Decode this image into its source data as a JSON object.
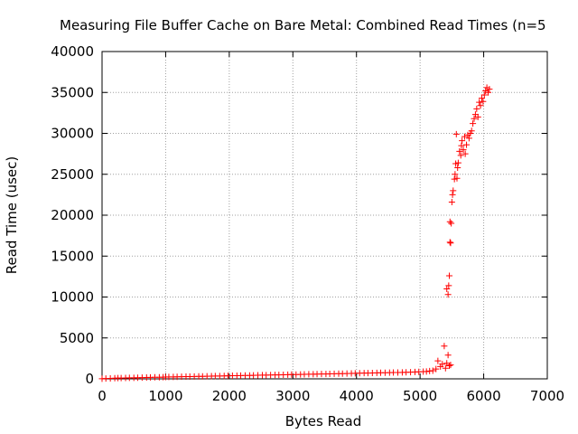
{
  "chart_data": {
    "type": "scatter",
    "title": "Measuring File Buffer Cache on Bare Metal: Combined Read Times (n=5",
    "xlabel": "Bytes Read",
    "ylabel": "Read Time (usec)",
    "xlim": [
      0,
      7000
    ],
    "ylim": [
      0,
      40000
    ],
    "xticks": [
      0,
      1000,
      2000,
      3000,
      4000,
      5000,
      6000,
      7000
    ],
    "yticks": [
      0,
      5000,
      10000,
      15000,
      20000,
      25000,
      30000,
      35000,
      40000
    ],
    "grid": true,
    "legend": "none",
    "marker": "+",
    "color": "#ff0000",
    "series": [
      {
        "points": [
          [
            0,
            20
          ],
          [
            60,
            40
          ],
          [
            130,
            60
          ],
          [
            200,
            80
          ],
          [
            250,
            90
          ],
          [
            300,
            100
          ],
          [
            370,
            110
          ],
          [
            430,
            120
          ],
          [
            500,
            130
          ],
          [
            560,
            140
          ],
          [
            630,
            150
          ],
          [
            700,
            160
          ],
          [
            760,
            180
          ],
          [
            830,
            190
          ],
          [
            900,
            200
          ],
          [
            960,
            210
          ],
          [
            1000,
            220
          ],
          [
            1050,
            230
          ],
          [
            1120,
            240
          ],
          [
            1180,
            250
          ],
          [
            1250,
            260
          ],
          [
            1320,
            270
          ],
          [
            1380,
            280
          ],
          [
            1450,
            290
          ],
          [
            1520,
            300
          ],
          [
            1580,
            310
          ],
          [
            1650,
            320
          ],
          [
            1720,
            330
          ],
          [
            1780,
            340
          ],
          [
            1850,
            350
          ],
          [
            1920,
            360
          ],
          [
            1980,
            370
          ],
          [
            2050,
            380
          ],
          [
            2120,
            390
          ],
          [
            2180,
            400
          ],
          [
            2250,
            410
          ],
          [
            2320,
            420
          ],
          [
            2380,
            430
          ],
          [
            2450,
            440
          ],
          [
            2520,
            450
          ],
          [
            2580,
            460
          ],
          [
            2650,
            470
          ],
          [
            2720,
            480
          ],
          [
            2780,
            490
          ],
          [
            2850,
            500
          ],
          [
            2920,
            510
          ],
          [
            2980,
            520
          ],
          [
            3050,
            530
          ],
          [
            3120,
            540
          ],
          [
            3180,
            550
          ],
          [
            3250,
            560
          ],
          [
            3320,
            570
          ],
          [
            3380,
            580
          ],
          [
            3450,
            590
          ],
          [
            3520,
            600
          ],
          [
            3580,
            610
          ],
          [
            3650,
            620
          ],
          [
            3720,
            630
          ],
          [
            3780,
            640
          ],
          [
            3850,
            650
          ],
          [
            3920,
            660
          ],
          [
            3980,
            680
          ],
          [
            4050,
            690
          ],
          [
            4120,
            700
          ],
          [
            4180,
            710
          ],
          [
            4250,
            720
          ],
          [
            4320,
            730
          ],
          [
            4380,
            740
          ],
          [
            4450,
            750
          ],
          [
            4520,
            760
          ],
          [
            4580,
            770
          ],
          [
            4650,
            780
          ],
          [
            4720,
            790
          ],
          [
            4780,
            800
          ],
          [
            4850,
            820
          ],
          [
            4920,
            840
          ],
          [
            4980,
            860
          ],
          [
            5050,
            880
          ],
          [
            5100,
            900
          ],
          [
            5150,
            950
          ],
          [
            5200,
            1000
          ],
          [
            5250,
            1200
          ],
          [
            5280,
            2200
          ],
          [
            5320,
            1500
          ],
          [
            5350,
            1800
          ],
          [
            5380,
            4000
          ],
          [
            5400,
            1300
          ],
          [
            5420,
            1900
          ],
          [
            5440,
            2900
          ],
          [
            5460,
            1600
          ],
          [
            5480,
            1700
          ],
          [
            5420,
            11000
          ],
          [
            5440,
            10300
          ],
          [
            5450,
            11400
          ],
          [
            5460,
            12600
          ],
          [
            5470,
            16700
          ],
          [
            5480,
            16600
          ],
          [
            5470,
            19200
          ],
          [
            5490,
            19000
          ],
          [
            5500,
            21600
          ],
          [
            5510,
            22500
          ],
          [
            5520,
            23000
          ],
          [
            5540,
            24400
          ],
          [
            5550,
            25000
          ],
          [
            5560,
            26300
          ],
          [
            5570,
            29900
          ],
          [
            5580,
            24500
          ],
          [
            5590,
            25800
          ],
          [
            5600,
            26400
          ],
          [
            5620,
            27800
          ],
          [
            5640,
            27300
          ],
          [
            5650,
            28500
          ],
          [
            5660,
            29100
          ],
          [
            5680,
            28000
          ],
          [
            5700,
            29600
          ],
          [
            5710,
            27500
          ],
          [
            5730,
            28600
          ],
          [
            5750,
            29800
          ],
          [
            5770,
            29400
          ],
          [
            5790,
            30000
          ],
          [
            5810,
            30300
          ],
          [
            5830,
            31200
          ],
          [
            5850,
            31800
          ],
          [
            5870,
            32300
          ],
          [
            5890,
            33000
          ],
          [
            5910,
            32000
          ],
          [
            5930,
            33800
          ],
          [
            5950,
            33400
          ],
          [
            5970,
            34300
          ],
          [
            5990,
            33900
          ],
          [
            6010,
            34700
          ],
          [
            6030,
            35200
          ],
          [
            6050,
            35600
          ],
          [
            6070,
            35000
          ],
          [
            6090,
            35400
          ]
        ]
      }
    ]
  }
}
